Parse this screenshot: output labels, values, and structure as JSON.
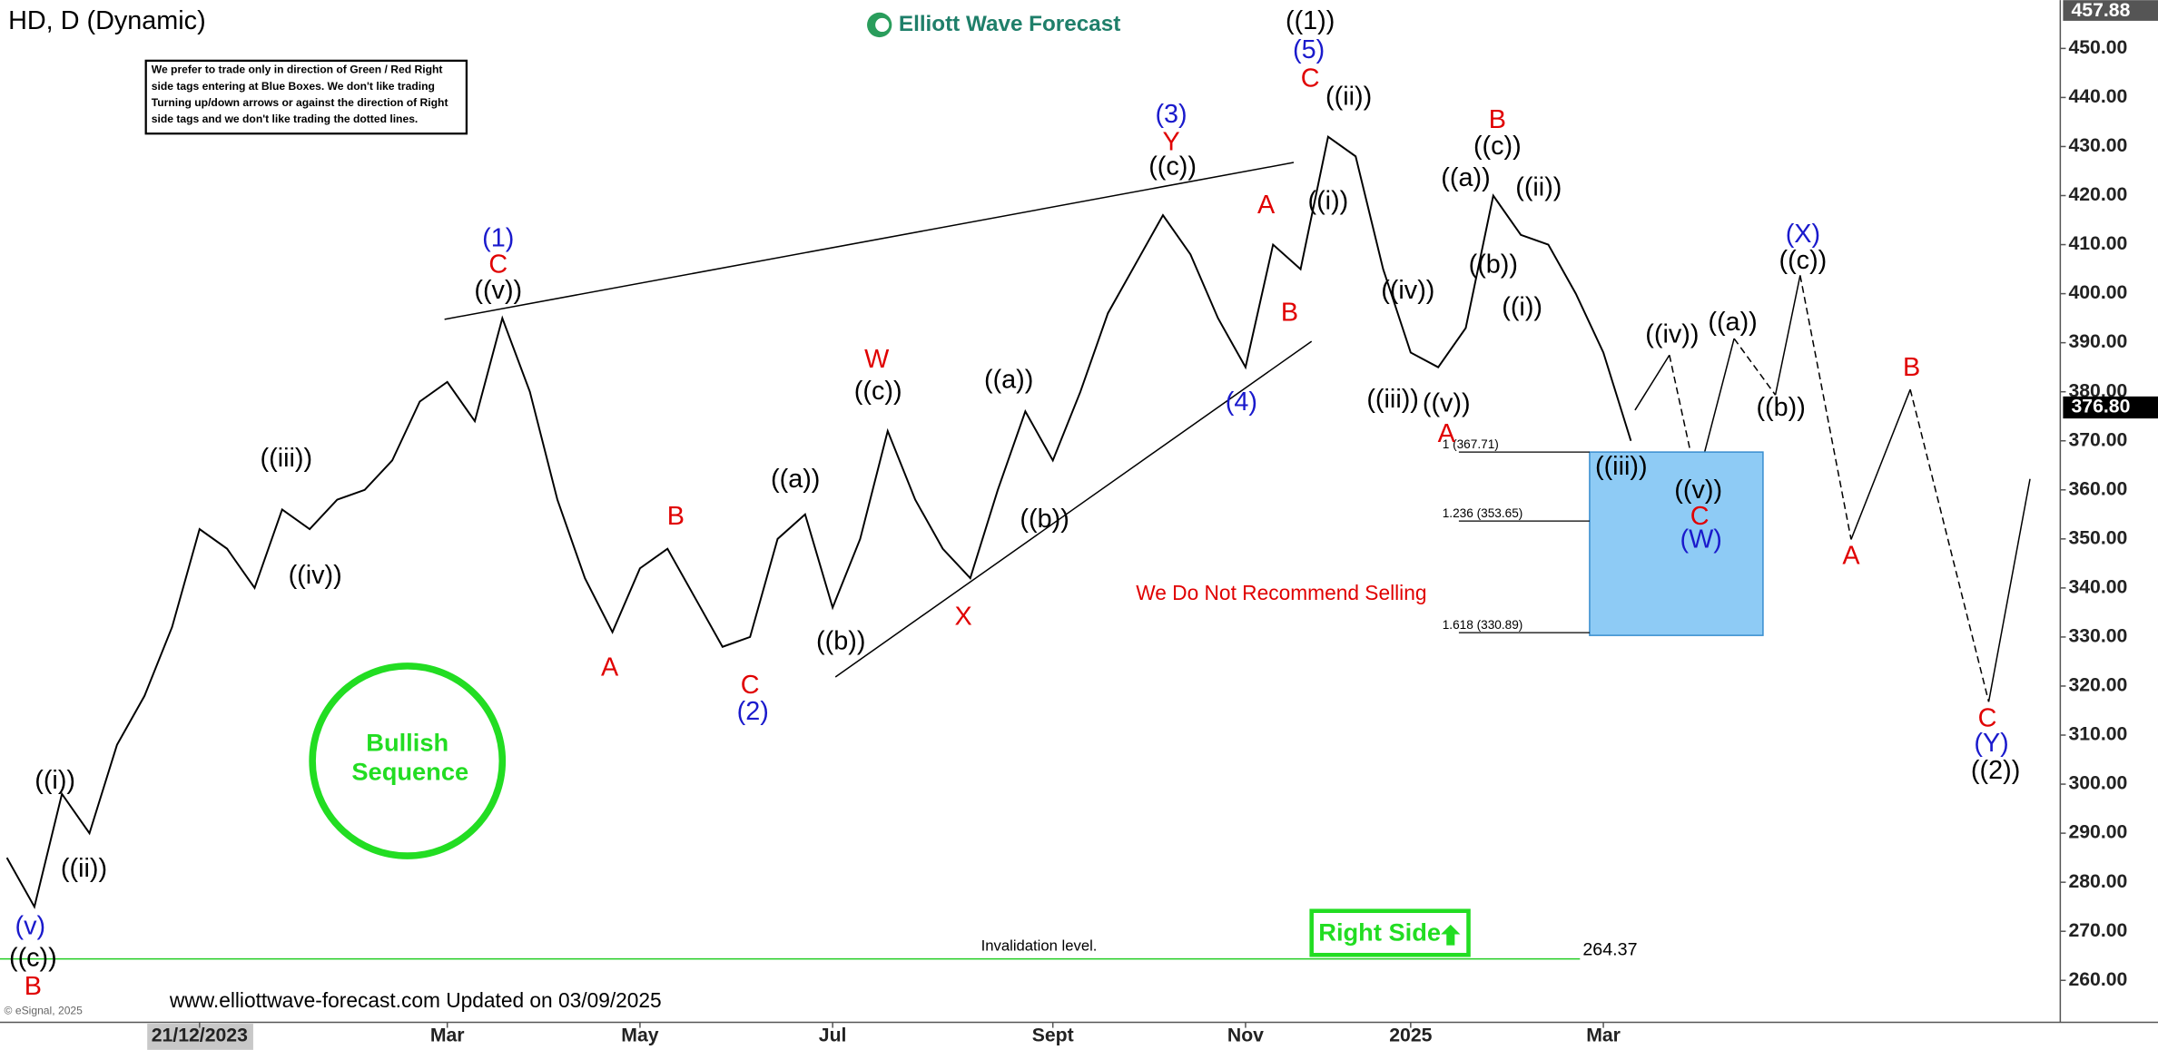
{
  "chart_data": {
    "type": "line",
    "title": "HD, D (Dynamic)",
    "logo": "Elliott Wave Forecast",
    "disclaimer": [
      "We prefer to trade only in direction of Green / Red Right",
      "side tags entering at Blue Boxes. We don't like trading",
      "Turning up/down arrows or against the direction of Right",
      "side tags and we don't like trading the dotted lines."
    ],
    "categories": [
      null,
      null,
      null,
      null,
      null,
      null,
      null,
      "21/12/2023",
      null,
      null,
      null,
      null,
      null,
      null,
      null,
      null,
      "Mar",
      null,
      null,
      null,
      null,
      null,
      null,
      "May",
      null,
      null,
      null,
      null,
      null,
      null,
      "Jul",
      null,
      null,
      null,
      null,
      null,
      null,
      null,
      "Sept",
      null,
      null,
      null,
      null,
      null,
      null,
      "Nov",
      null,
      null,
      null,
      null,
      null,
      "2025",
      null,
      null,
      null,
      null,
      null,
      null,
      "Mar",
      null
    ],
    "values": [
      285,
      275,
      298,
      290,
      308,
      318,
      332,
      352,
      348,
      340,
      356,
      352,
      358,
      360,
      366,
      378,
      382,
      374,
      395,
      380,
      358,
      342,
      331,
      344,
      348,
      338,
      328,
      330,
      350,
      355,
      336,
      350,
      372,
      358,
      348,
      342,
      360,
      376,
      366,
      380,
      396,
      406,
      416,
      408,
      395,
      385,
      410,
      405,
      432,
      428,
      405,
      388,
      385,
      393,
      420,
      412,
      410,
      400,
      388,
      370
    ],
    "color": "#000000",
    "ylim": [
      252,
      457.88
    ],
    "yticks": [
      {
        "value": 260,
        "label": "260.00"
      },
      {
        "value": 270,
        "label": "270.00"
      },
      {
        "value": 280,
        "label": "280.00"
      },
      {
        "value": 290,
        "label": "290.00"
      },
      {
        "value": 300,
        "label": "300.00"
      },
      {
        "value": 310,
        "label": "310.00"
      },
      {
        "value": 320,
        "label": "320.00"
      },
      {
        "value": 330,
        "label": "330.00"
      },
      {
        "value": 340,
        "label": "340.00"
      },
      {
        "value": 350,
        "label": "350.00"
      },
      {
        "value": 360,
        "label": "360.00"
      },
      {
        "value": 370,
        "label": "370.00"
      },
      {
        "value": 380,
        "label": "380.00"
      },
      {
        "value": 390,
        "label": "390.00"
      },
      {
        "value": 400,
        "label": "400.00"
      },
      {
        "value": 410,
        "label": "410.00"
      },
      {
        "value": 420,
        "label": "420.00"
      },
      {
        "value": 430,
        "label": "430.00"
      },
      {
        "value": 440,
        "label": "440.00"
      },
      {
        "value": 450,
        "label": "450.00"
      }
    ],
    "grid": false,
    "last_price": {
      "value": 376.8,
      "label": "376.80"
    },
    "fib_levels": [
      {
        "value": 367.71,
        "label": "1 (367.71)"
      },
      {
        "value": 353.65,
        "label": "1.236 (353.65)"
      },
      {
        "value": 330.89,
        "label": "1.618 (330.89)"
      }
    ],
    "invalidation": {
      "value": 264.37,
      "label": "264.37",
      "text": "Invalidation level."
    },
    "note": "We Do Not Recommend Selling",
    "bullish": [
      "Bullish",
      "Sequence"
    ],
    "right_side": "Right Side",
    "footer": "www.elliottwave-forecast.com Updated on 03/09/2025",
    "copyright": "© eSignal, 2025",
    "annotations": [
      {
        "text": "B",
        "color": "#e00000"
      },
      {
        "text": "((c))",
        "color": "#000000"
      },
      {
        "text": "(v)",
        "color": "#1a1acc"
      },
      {
        "text": "((i))",
        "color": "#000000"
      },
      {
        "text": "((ii))",
        "color": "#000000"
      },
      {
        "text": "((iii))",
        "color": "#000000"
      },
      {
        "text": "((iv))",
        "color": "#000000"
      },
      {
        "text": "(1)",
        "color": "#1a1acc"
      },
      {
        "text": "C",
        "color": "#e00000"
      },
      {
        "text": "((v))",
        "color": "#000000"
      },
      {
        "text": "A",
        "color": "#e00000"
      },
      {
        "text": "B",
        "color": "#e00000"
      },
      {
        "text": "C",
        "color": "#e00000"
      },
      {
        "text": "(2)",
        "color": "#1a1acc"
      },
      {
        "text": "((a))",
        "color": "#000000"
      },
      {
        "text": "((b))",
        "color": "#000000"
      },
      {
        "text": "W",
        "color": "#e00000"
      },
      {
        "text": "((c))",
        "color": "#000000"
      },
      {
        "text": "X",
        "color": "#e00000"
      },
      {
        "text": "((a))",
        "color": "#000000"
      },
      {
        "text": "((b))",
        "color": "#000000"
      },
      {
        "text": "(3)",
        "color": "#1a1acc"
      },
      {
        "text": "Y",
        "color": "#e00000"
      },
      {
        "text": "((c))",
        "color": "#000000"
      },
      {
        "text": "A",
        "color": "#e00000"
      },
      {
        "text": "B",
        "color": "#e00000"
      },
      {
        "text": "(4)",
        "color": "#1a1acc"
      },
      {
        "text": "((1))",
        "color": "#000000"
      },
      {
        "text": "(5)",
        "color": "#1a1acc"
      },
      {
        "text": "C",
        "color": "#e00000"
      },
      {
        "text": "((ii))",
        "color": "#000000"
      },
      {
        "text": "((i))",
        "color": "#000000"
      },
      {
        "text": "((iv))",
        "color": "#000000"
      },
      {
        "text": "((iii))",
        "color": "#000000"
      },
      {
        "text": "((v))",
        "color": "#000000"
      },
      {
        "text": "A",
        "color": "#e00000"
      },
      {
        "text": "B",
        "color": "#e00000"
      },
      {
        "text": "((c))",
        "color": "#000000"
      },
      {
        "text": "((a))",
        "color": "#000000"
      },
      {
        "text": "((ii))",
        "color": "#000000"
      },
      {
        "text": "((b))",
        "color": "#000000"
      },
      {
        "text": "((i))",
        "color": "#000000"
      },
      {
        "text": "((iii))",
        "color": "#000000"
      },
      {
        "text": "((iv))",
        "color": "#000000"
      },
      {
        "text": "((a))",
        "color": "#000000"
      },
      {
        "text": "((v))",
        "color": "#000000"
      },
      {
        "text": "C",
        "color": "#e00000"
      },
      {
        "text": "(W)",
        "color": "#1a1acc"
      },
      {
        "text": "((b))",
        "color": "#000000"
      },
      {
        "text": "(X)",
        "color": "#1a1acc"
      },
      {
        "text": "((c))",
        "color": "#000000"
      },
      {
        "text": "B",
        "color": "#e00000"
      },
      {
        "text": "A",
        "color": "#e00000"
      },
      {
        "text": "C",
        "color": "#e00000"
      },
      {
        "text": "(Y)",
        "color": "#1a1acc"
      },
      {
        "text": "((2))",
        "color": "#000000"
      }
    ]
  }
}
